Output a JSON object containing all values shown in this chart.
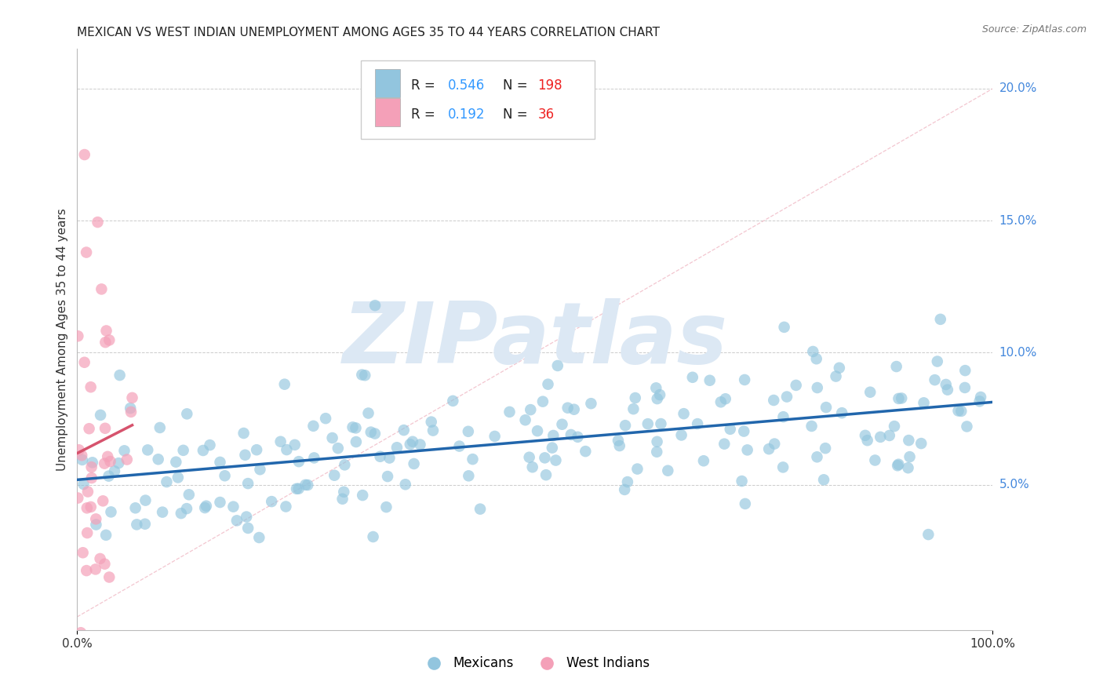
{
  "title": "MEXICAN VS WEST INDIAN UNEMPLOYMENT AMONG AGES 35 TO 44 YEARS CORRELATION CHART",
  "source": "Source: ZipAtlas.com",
  "ylabel": "Unemployment Among Ages 35 to 44 years",
  "xlim": [
    0,
    1
  ],
  "ylim": [
    -0.005,
    0.215
  ],
  "yticks": [
    0.05,
    0.1,
    0.15,
    0.2
  ],
  "ytick_labels": [
    "5.0%",
    "10.0%",
    "15.0%",
    "20.0%"
  ],
  "xtick_labels": [
    "0.0%",
    "100.0%"
  ],
  "xticks": [
    0,
    1
  ],
  "r_mexican": 0.546,
  "n_mexican": 198,
  "r_westindian": 0.192,
  "n_westindian": 36,
  "scatter_color_mexican": "#92c5de",
  "scatter_color_westindian": "#f4a0b8",
  "line_color_mexican": "#2166ac",
  "line_color_westindian": "#d6536d",
  "diag_color": "#e8c0c8",
  "watermark_color": "#dce8f4",
  "background_color": "#ffffff",
  "grid_color": "#cccccc",
  "ytick_color": "#4488dd",
  "title_fontsize": 11,
  "source_fontsize": 9,
  "seed": 42
}
